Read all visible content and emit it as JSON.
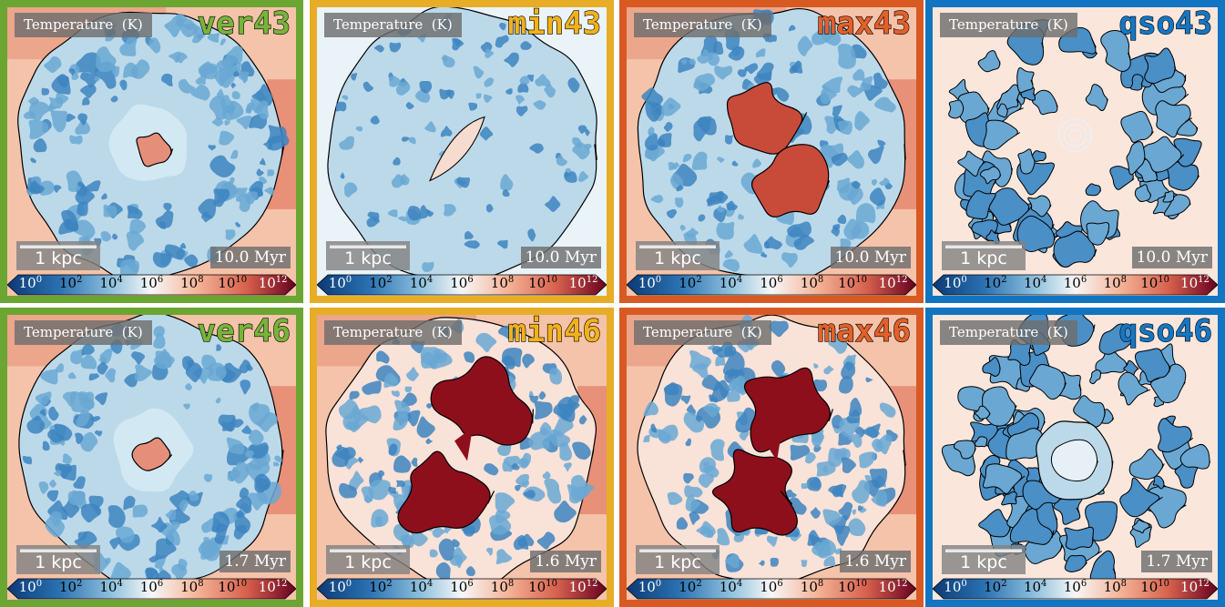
{
  "colorbar": {
    "label": "Temperature  (K)",
    "ticks": [
      {
        "base": "10",
        "exp": "0"
      },
      {
        "base": "10",
        "exp": "2"
      },
      {
        "base": "10",
        "exp": "4"
      },
      {
        "base": "10",
        "exp": "6"
      },
      {
        "base": "10",
        "exp": "8"
      },
      {
        "base": "10",
        "exp": "10"
      },
      {
        "base": "10",
        "exp": "12"
      }
    ]
  },
  "scale_label": "1 kpc",
  "panels": [
    {
      "run": "ver43",
      "time": "10.0 Myr",
      "frame_color": "#6aa631",
      "run_color": "#78b43a",
      "state": "small-hot"
    },
    {
      "run": "min43",
      "time": "10.0 Myr",
      "frame_color": "#e8ad26",
      "run_color": "#f2b11c",
      "state": "cool-sparse"
    },
    {
      "run": "max43",
      "time": "10.0 Myr",
      "frame_color": "#d85a22",
      "run_color": "#e2602a",
      "state": "bipolar-warm"
    },
    {
      "run": "qso43",
      "time": "10.0 Myr",
      "frame_color": "#1175c1",
      "run_color": "#1577c3",
      "state": "clumps"
    },
    {
      "run": "ver46",
      "time": "1.7 Myr",
      "frame_color": "#6aa631",
      "run_color": "#78b43a",
      "state": "small-hot"
    },
    {
      "run": "min46",
      "time": "1.6 Myr",
      "frame_color": "#e8ad26",
      "run_color": "#f2b11c",
      "state": "bipolar-hot"
    },
    {
      "run": "max46",
      "time": "1.6 Myr",
      "frame_color": "#d85a22",
      "run_color": "#e2602a",
      "state": "bipolar-hot2"
    },
    {
      "run": "qso46",
      "time": "1.7 Myr",
      "frame_color": "#1175c1",
      "run_color": "#1577c3",
      "state": "cavity"
    }
  ]
}
